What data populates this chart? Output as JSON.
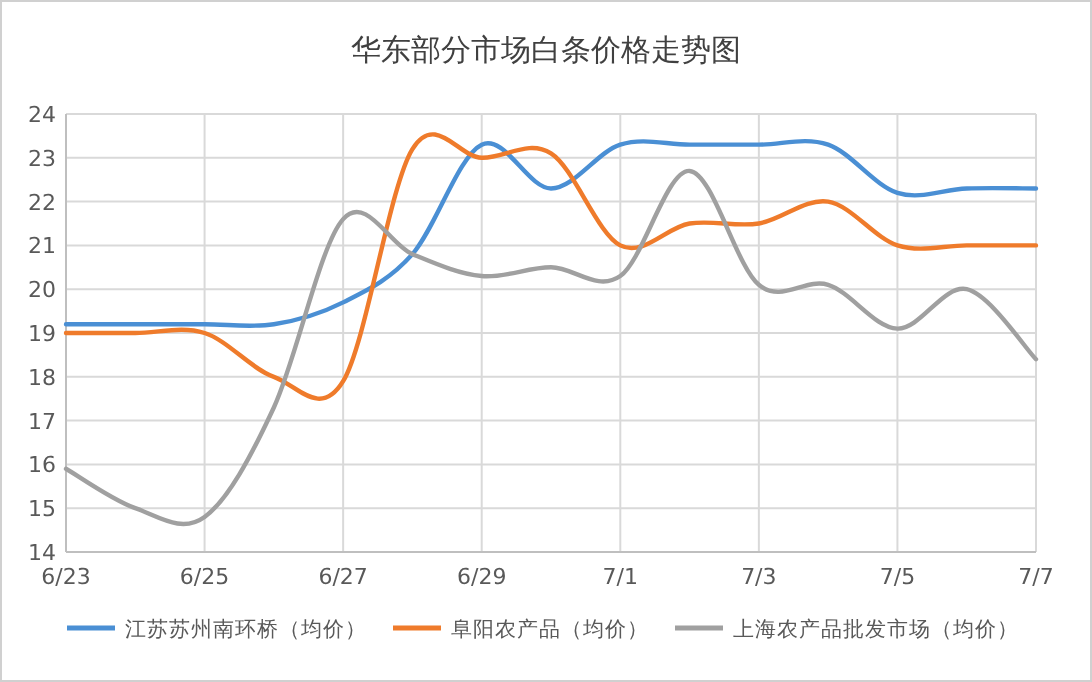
{
  "chart_data": {
    "type": "line",
    "title": "华东部分市场白条价格走势图",
    "categories": [
      "6/23",
      null,
      "6/25",
      null,
      "6/27",
      null,
      "6/29",
      null,
      "7/1",
      null,
      "7/3",
      null,
      "7/5",
      null,
      "7/7"
    ],
    "series": [
      {
        "name": "江苏苏州南环桥（均价）",
        "color": "#4a8fd4",
        "values": [
          19.2,
          19.2,
          19.2,
          19.2,
          19.7,
          20.8,
          23.3,
          22.3,
          23.3,
          23.3,
          23.3,
          23.3,
          22.2,
          22.3,
          22.3
        ]
      },
      {
        "name": "阜阳农产品（均价）",
        "color": "#ef7b2b",
        "values": [
          19.0,
          19.0,
          19.0,
          18.0,
          17.9,
          23.2,
          23.0,
          23.1,
          21.0,
          21.5,
          21.5,
          22.0,
          21.0,
          21.0,
          21.0
        ]
      },
      {
        "name": "上海农产品批发市场（均价）",
        "color": "#a0a0a0",
        "values": [
          15.9,
          15.0,
          14.8,
          17.3,
          21.6,
          20.8,
          20.3,
          20.5,
          20.3,
          22.7,
          20.1,
          20.1,
          19.1,
          20.0,
          18.4
        ]
      }
    ],
    "ylim": [
      14,
      24
    ],
    "yticks": [
      14,
      15,
      16,
      17,
      18,
      19,
      20,
      21,
      22,
      23,
      24
    ],
    "grid": true,
    "legend": "bottom",
    "marker": "none",
    "line_style": "solid"
  }
}
